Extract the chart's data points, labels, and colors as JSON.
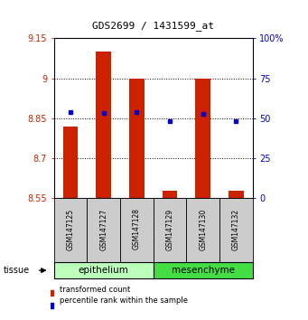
{
  "title": "GDS2699 / 1431599_at",
  "samples": [
    "GSM147125",
    "GSM147127",
    "GSM147128",
    "GSM147129",
    "GSM147130",
    "GSM147132"
  ],
  "red_values": [
    8.82,
    9.1,
    9.0,
    8.58,
    9.0,
    8.58
  ],
  "blue_values": [
    8.875,
    8.87,
    8.875,
    8.84,
    8.868,
    8.84
  ],
  "bar_base": 8.55,
  "ylim_left": [
    8.55,
    9.15
  ],
  "ylim_right": [
    0.0,
    1.0
  ],
  "yticks_left": [
    8.55,
    8.7,
    8.85,
    9.0,
    9.15
  ],
  "ytick_labels_left": [
    "8.55",
    "8.7",
    "8.85",
    "9",
    "9.15"
  ],
  "yticks_right": [
    0.0,
    0.25,
    0.5,
    0.75,
    1.0
  ],
  "ytick_labels_right": [
    "0",
    "25",
    "50",
    "75",
    "100%"
  ],
  "grid_yticks": [
    8.7,
    8.85,
    9.0
  ],
  "tissue_groups": [
    {
      "label": "epithelium",
      "indices": [
        0,
        1,
        2
      ],
      "color": "#bbffbb"
    },
    {
      "label": "mesenchyme",
      "indices": [
        3,
        4,
        5
      ],
      "color": "#44dd44"
    }
  ],
  "bar_color": "#cc2200",
  "dot_color": "#0000cc",
  "xlabel_area_color": "#cccccc",
  "tissue_label": "tissue",
  "legend_labels": [
    "transformed count",
    "percentile rank within the sample"
  ]
}
